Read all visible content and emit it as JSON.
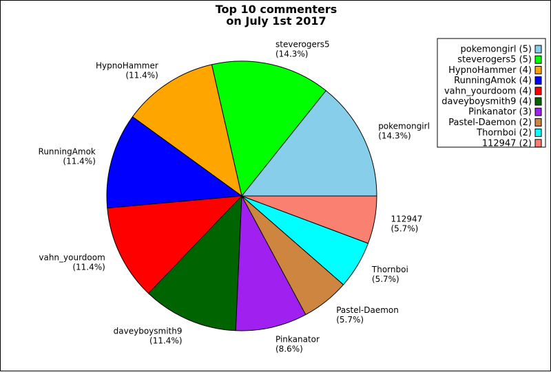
{
  "chart_data": {
    "type": "pie",
    "title": [
      "Top 10 commenters",
      "on July 1st 2017"
    ],
    "legend_position": "top-right",
    "slices": [
      {
        "name": "pokemongirl",
        "value": 5,
        "percent_label": "(14.3%)",
        "legend_label": "pokemongirl (5)",
        "color": "#87CEEB"
      },
      {
        "name": "steverogers5",
        "value": 5,
        "percent_label": "(14.3%)",
        "legend_label": "steverogers5 (5)",
        "color": "#00FF00"
      },
      {
        "name": "HypnoHammer",
        "value": 4,
        "percent_label": "(11.4%)",
        "legend_label": "HypnoHammer (4)",
        "color": "#FFA500"
      },
      {
        "name": "RunningAmok",
        "value": 4,
        "percent_label": "(11.4%)",
        "legend_label": "RunningAmok (4)",
        "color": "#0000FF"
      },
      {
        "name": "vahn_yourdoom",
        "value": 4,
        "percent_label": "(11.4%)",
        "legend_label": "vahn_yourdoom (4)",
        "color": "#FF0000"
      },
      {
        "name": "daveyboysmith9",
        "value": 4,
        "percent_label": "(11.4%)",
        "legend_label": "daveyboysmith9 (4)",
        "color": "#006400"
      },
      {
        "name": "Pinkanator",
        "value": 3,
        "percent_label": "(8.6%)",
        "legend_label": "Pinkanator (3)",
        "color": "#A020F0"
      },
      {
        "name": "Pastel-Daemon",
        "value": 2,
        "percent_label": "(5.7%)",
        "legend_label": "Pastel-Daemon (2)",
        "color": "#CD853F"
      },
      {
        "name": "Thornboi",
        "value": 2,
        "percent_label": "(5.7%)",
        "legend_label": "Thornboi (2)",
        "color": "#00FFFF"
      },
      {
        "name": "112947",
        "value": 2,
        "percent_label": "(5.7%)",
        "legend_label": "112947 (2)",
        "color": "#FA8072"
      }
    ]
  }
}
